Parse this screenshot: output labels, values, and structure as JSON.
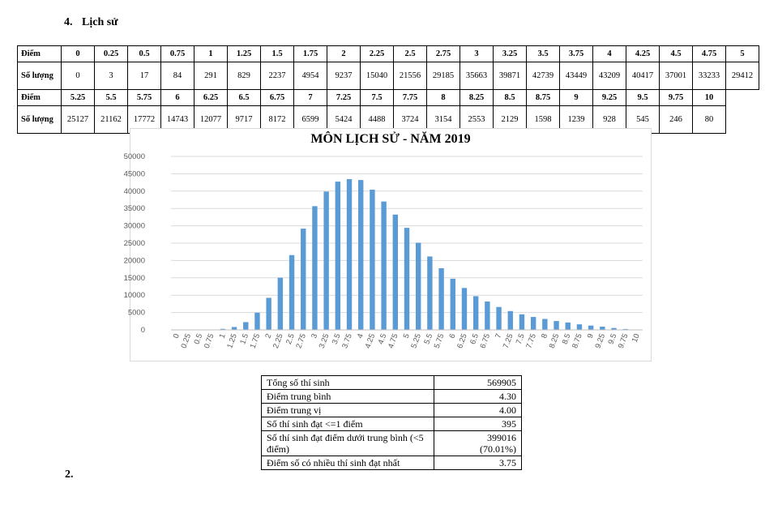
{
  "heading": {
    "number": "4.",
    "title": "Lịch sử"
  },
  "distribution_table": {
    "score_label": "Điểm",
    "count_label": "Số lượng",
    "row1_scores": [
      "0",
      "0.25",
      "0.5",
      "0.75",
      "1",
      "1.25",
      "1.5",
      "1.75",
      "2",
      "2.25",
      "2.5",
      "2.75",
      "3",
      "3.25",
      "3.5",
      "3.75",
      "4",
      "4.25",
      "4.5",
      "4.75",
      "5"
    ],
    "row1_counts": [
      "0",
      "3",
      "17",
      "84",
      "291",
      "829",
      "2237",
      "4954",
      "9237",
      "15040",
      "21556",
      "29185",
      "35663",
      "39871",
      "42739",
      "43449",
      "43209",
      "40417",
      "37001",
      "33233",
      "29412"
    ],
    "row2_scores": [
      "5.25",
      "5.5",
      "5.75",
      "6",
      "6.25",
      "6.5",
      "6.75",
      "7",
      "7.25",
      "7.5",
      "7.75",
      "8",
      "8.25",
      "8.5",
      "8.75",
      "9",
      "9.25",
      "9.5",
      "9.75",
      "10"
    ],
    "row2_counts": [
      "25127",
      "21162",
      "17772",
      "14743",
      "12077",
      "9717",
      "8172",
      "6599",
      "5424",
      "4488",
      "3724",
      "3154",
      "2553",
      "2129",
      "1598",
      "1239",
      "928",
      "545",
      "246",
      "80"
    ]
  },
  "chart_data": {
    "type": "bar",
    "title": "MÔN LỊCH SỬ - NĂM 2019",
    "categories": [
      "0",
      "0.25",
      "0.5",
      "0.75",
      "1",
      "1.25",
      "1.5",
      "1.75",
      "2",
      "2.25",
      "2.5",
      "2.75",
      "3",
      "3.25",
      "3.5",
      "3.75",
      "4",
      "4.25",
      "4.5",
      "4.75",
      "5",
      "5.25",
      "5.5",
      "5.75",
      "6",
      "6.25",
      "6.5",
      "6.75",
      "7",
      "7.25",
      "7.5",
      "7.75",
      "8",
      "8.25",
      "8.5",
      "8.75",
      "9",
      "9.25",
      "9.5",
      "9.75",
      "10"
    ],
    "values": [
      0,
      3,
      17,
      84,
      291,
      829,
      2237,
      4954,
      9237,
      15040,
      21556,
      29185,
      35663,
      39871,
      42739,
      43449,
      43209,
      40417,
      37001,
      33233,
      29412,
      25127,
      21162,
      17772,
      14743,
      12077,
      9717,
      8172,
      6599,
      5424,
      4488,
      3724,
      3154,
      2553,
      2129,
      1598,
      1239,
      928,
      545,
      246,
      80
    ],
    "ylim": [
      0,
      50000
    ],
    "yticks": [
      "0",
      "5000",
      "10000",
      "15000",
      "20000",
      "25000",
      "30000",
      "35000",
      "40000",
      "45000",
      "50000"
    ],
    "xlabel": "",
    "ylabel": "",
    "grid": true,
    "bar_color": "#5b9bd5"
  },
  "summary": [
    {
      "label": "Tổng số thí sinh",
      "value": "569905"
    },
    {
      "label": "Điểm trung bình",
      "value": "4.30"
    },
    {
      "label": "Điểm trung vị",
      "value": "4.00"
    },
    {
      "label": "Số thí sinh đạt <=1 điểm",
      "value": "395"
    },
    {
      "label": "Số thí sinh đạt điểm dưới trung bình (<5 điểm)",
      "value": "399016",
      "value_note": "(70.01%)"
    },
    {
      "label": "Điểm số có nhiều thí sinh đạt nhất",
      "value": "3.75"
    }
  ],
  "footer_number": "2."
}
